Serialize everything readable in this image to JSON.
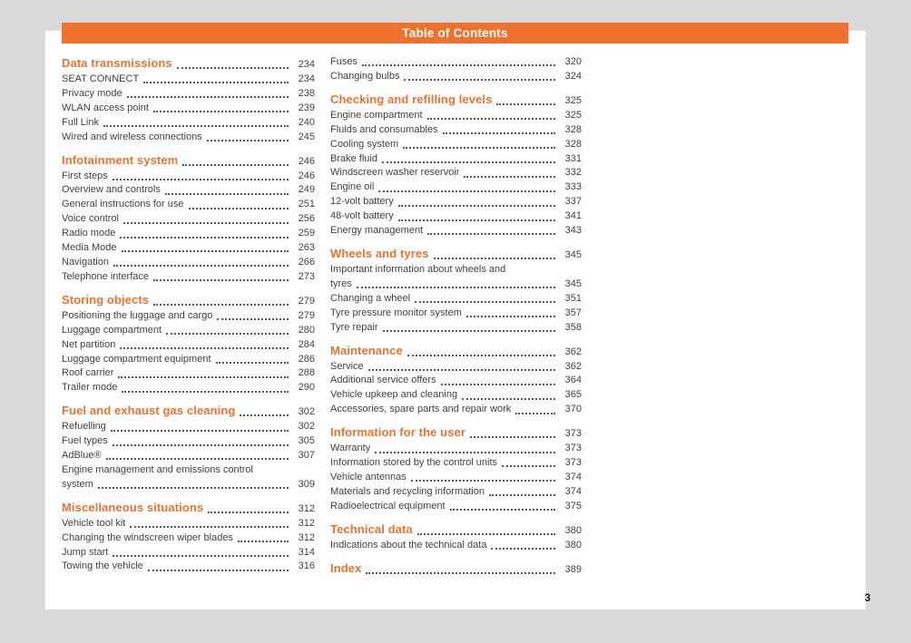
{
  "app": {
    "header_title": "Table of Contents",
    "folio_page_number": "3",
    "accent_color": "#f0712e",
    "canvas_color": "#dbdbdb",
    "text_color": "#3f3f3f"
  },
  "toc": {
    "columns": [
      {
        "sections": [
          {
            "heading": {
              "label": "Data transmissions",
              "page": "234"
            },
            "entries": [
              {
                "label": "SEAT CONNECT",
                "page": "234"
              },
              {
                "label": "Privacy mode",
                "page": "238"
              },
              {
                "label": "WLAN access point",
                "page": "239"
              },
              {
                "label": "Full Link",
                "page": "240"
              },
              {
                "label": "Wired and wireless connections",
                "page": "245"
              }
            ]
          },
          {
            "heading": {
              "label": "Infotainment system",
              "page": "246"
            },
            "entries": [
              {
                "label": "First steps",
                "page": "246"
              },
              {
                "label": "Overview and controls",
                "page": "249"
              },
              {
                "label": "General instructions for use",
                "page": "251"
              },
              {
                "label": "Voice control",
                "page": "256"
              },
              {
                "label": "Radio mode",
                "page": "259"
              },
              {
                "label": "Media Mode",
                "page": "263"
              },
              {
                "label": "Navigation",
                "page": "266"
              },
              {
                "label": "Telephone interface",
                "page": "273"
              }
            ]
          },
          {
            "heading": {
              "label": "Storing objects",
              "page": "279"
            },
            "entries": [
              {
                "label": "Positioning the luggage and cargo",
                "page": "279"
              },
              {
                "label": "Luggage compartment",
                "page": "280"
              },
              {
                "label": "Net partition",
                "page": "284"
              },
              {
                "label": "Luggage compartment equipment",
                "page": "286"
              },
              {
                "label": "Roof carrier",
                "page": "288"
              },
              {
                "label": "Trailer mode",
                "page": "290"
              }
            ]
          },
          {
            "heading": {
              "label": "Fuel and exhaust gas cleaning",
              "page": "302"
            },
            "entries": [
              {
                "label": "Refuelling",
                "page": "302"
              },
              {
                "label": "Fuel types",
                "page": "305"
              },
              {
                "label": "AdBlue®",
                "page": "307"
              },
              {
                "label": "Engine management and emissions control",
                "page": ""
              },
              {
                "label": "system",
                "page": "309"
              }
            ]
          },
          {
            "heading": {
              "label": "Miscellaneous situations",
              "page": "312"
            },
            "entries": [
              {
                "label": "Vehicle tool kit",
                "page": "312"
              },
              {
                "label": "Changing the windscreen wiper blades",
                "page": "312"
              },
              {
                "label": "Jump start",
                "page": "314"
              },
              {
                "label": "Towing the vehicle",
                "page": "316"
              }
            ]
          }
        ]
      },
      {
        "sections": [
          {
            "heading": null,
            "entries": [
              {
                "label": "Fuses",
                "page": "320"
              },
              {
                "label": "Changing bulbs",
                "page": "324"
              }
            ]
          },
          {
            "heading": {
              "label": "Checking and refilling levels",
              "page": "325"
            },
            "entries": [
              {
                "label": "Engine compartment",
                "page": "325"
              },
              {
                "label": "Fluids and consumables",
                "page": "328"
              },
              {
                "label": "Cooling system",
                "page": "328"
              },
              {
                "label": "Brake fluid",
                "page": "331"
              },
              {
                "label": "Windscreen washer reservoir",
                "page": "332"
              },
              {
                "label": "Engine oil",
                "page": "333"
              },
              {
                "label": "12-volt battery",
                "page": "337"
              },
              {
                "label": "48-volt battery",
                "page": "341"
              },
              {
                "label": "Energy management",
                "page": "343"
              }
            ]
          },
          {
            "heading": {
              "label": "Wheels and tyres",
              "page": "345"
            },
            "entries": [
              {
                "label": "Important information about wheels and",
                "page": ""
              },
              {
                "label": "tyres",
                "page": "345"
              },
              {
                "label": "Changing a wheel",
                "page": "351"
              },
              {
                "label": "Tyre pressure monitor system",
                "page": "357"
              },
              {
                "label": "Tyre repair",
                "page": "358"
              }
            ]
          },
          {
            "heading": {
              "label": "Maintenance",
              "page": "362"
            },
            "entries": [
              {
                "label": "Service",
                "page": "362"
              },
              {
                "label": "Additional service offers",
                "page": "364"
              },
              {
                "label": "Vehicle upkeep and cleaning",
                "page": "365"
              },
              {
                "label": "Accessories, spare parts and repair work",
                "page": "370"
              }
            ]
          },
          {
            "heading": {
              "label": "Information for the user",
              "page": "373"
            },
            "entries": [
              {
                "label": "Warranty",
                "page": "373"
              },
              {
                "label": "Information stored by the control units",
                "page": "373"
              },
              {
                "label": "Vehicle antennas",
                "page": "374"
              },
              {
                "label": "Materials and recycling information",
                "page": "374"
              },
              {
                "label": "Radioelectrical equipment",
                "page": "375"
              }
            ]
          },
          {
            "heading": {
              "label": "Technical data",
              "page": "380"
            },
            "entries": [
              {
                "label": "Indications about the technical data",
                "page": "380"
              }
            ]
          },
          {
            "heading": {
              "label": "Index",
              "page": "389"
            },
            "entries": []
          }
        ]
      }
    ]
  }
}
